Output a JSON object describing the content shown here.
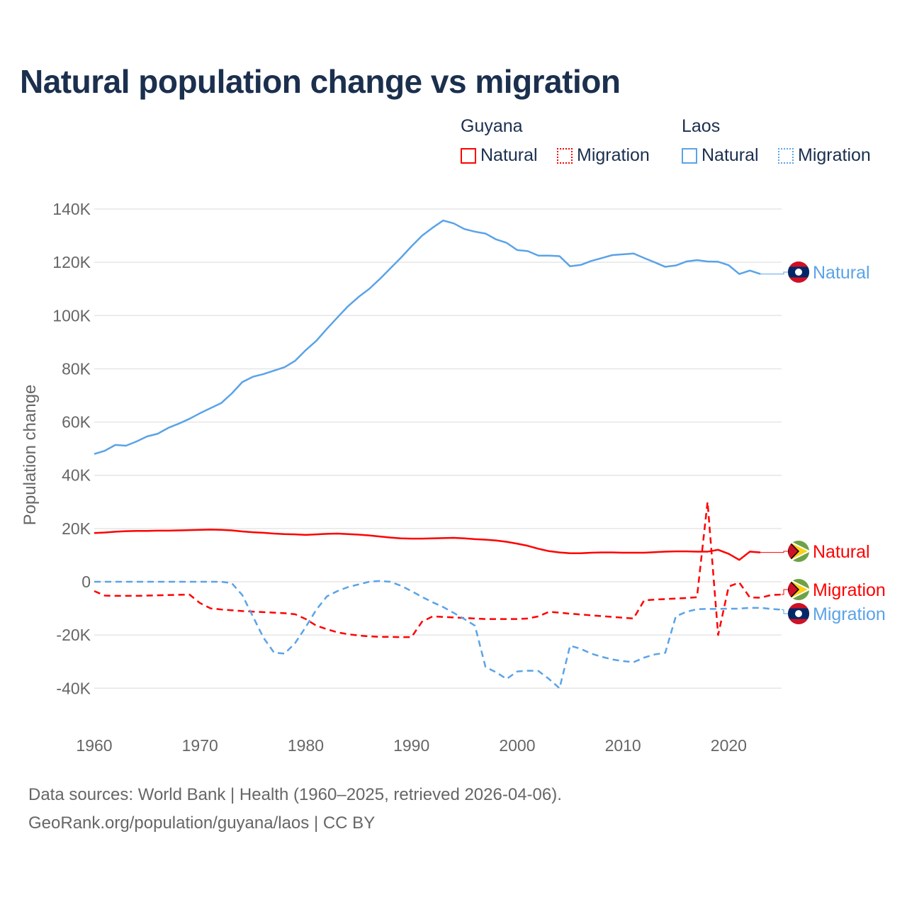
{
  "chart_data": {
    "type": "line",
    "title": "Natural population change vs migration",
    "xlabel": "",
    "ylabel": "Population change",
    "xlim": [
      1960,
      2025
    ],
    "ylim": [
      -50000,
      140000
    ],
    "y_ticks": [
      -40000,
      -20000,
      0,
      20000,
      40000,
      60000,
      80000,
      100000,
      120000,
      140000
    ],
    "y_tick_labels": [
      "-40K",
      "-20K",
      "0",
      "20K",
      "40K",
      "60K",
      "80K",
      "100K",
      "120K",
      "140K"
    ],
    "x_ticks": [
      1960,
      1970,
      1980,
      1990,
      2000,
      2010,
      2020
    ],
    "x_tick_labels": [
      "1960",
      "1970",
      "1980",
      "1990",
      "2000",
      "2010",
      "2020"
    ],
    "grid": true,
    "legend": {
      "placement": "top-right",
      "groups": [
        {
          "name": "Guyana",
          "items": [
            "Natural",
            "Migration"
          ]
        },
        {
          "name": "Laos",
          "items": [
            "Natural",
            "Migration"
          ]
        }
      ]
    },
    "series": [
      {
        "name": "Laos Natural",
        "country": "Laos",
        "kind": "Natural",
        "label": "Natural",
        "color": "#5aa3e8",
        "dashed": false,
        "start_year": 1960,
        "values": [
          48000,
          49200,
          51400,
          51100,
          52700,
          54600,
          55600,
          57800,
          59400,
          61200,
          63300,
          65200,
          67100,
          70700,
          75000,
          77000,
          78000,
          79300,
          80600,
          83000,
          87000,
          90500,
          95000,
          99300,
          103500,
          107000,
          110000,
          113700,
          117700,
          121700,
          126000,
          130000,
          133000,
          135700,
          134600,
          132500,
          131500,
          130800,
          128600,
          127300,
          124600,
          124200,
          122500,
          122500,
          122300,
          118500,
          119000,
          120500,
          121600,
          122700,
          123000,
          123300,
          121600,
          120000,
          118300,
          118800,
          120300,
          120800,
          120300,
          120200,
          118900,
          115600,
          116900,
          115600
        ]
      },
      {
        "name": "Guyana Natural",
        "country": "Guyana",
        "kind": "Natural",
        "label": "Natural",
        "color": "#ff0000",
        "dashed": false,
        "start_year": 1960,
        "values": [
          18300,
          18500,
          18800,
          19000,
          19100,
          19100,
          19200,
          19200,
          19300,
          19400,
          19500,
          19600,
          19500,
          19300,
          18900,
          18600,
          18400,
          18100,
          17900,
          17800,
          17600,
          17800,
          18000,
          18100,
          17900,
          17700,
          17400,
          17000,
          16600,
          16300,
          16200,
          16200,
          16300,
          16400,
          16500,
          16300,
          16000,
          15800,
          15500,
          15000,
          14300,
          13500,
          12400,
          11500,
          11000,
          10700,
          10700,
          10900,
          11000,
          11000,
          10900,
          10900,
          10900,
          11100,
          11300,
          11400,
          11400,
          11300,
          11300,
          12000,
          10500,
          8200,
          11300,
          11000
        ]
      },
      {
        "name": "Guyana Migration",
        "country": "Guyana",
        "kind": "Migration",
        "label": "Migration",
        "color": "#ff0000",
        "dashed": true,
        "start_year": 1960,
        "values": [
          -3500,
          -5200,
          -5300,
          -5300,
          -5300,
          -5200,
          -5100,
          -5000,
          -4900,
          -4800,
          -8000,
          -10000,
          -10400,
          -10700,
          -11000,
          -11200,
          -11400,
          -11600,
          -11800,
          -12200,
          -14000,
          -16500,
          -17800,
          -19000,
          -19700,
          -20200,
          -20500,
          -20700,
          -20700,
          -20800,
          -20800,
          -15000,
          -13000,
          -13200,
          -13400,
          -13600,
          -13800,
          -14000,
          -14000,
          -14000,
          -14000,
          -13800,
          -13000,
          -11300,
          -11600,
          -12000,
          -12300,
          -12600,
          -12900,
          -13200,
          -13500,
          -13800,
          -7000,
          -6700,
          -6500,
          -6300,
          -6100,
          -5800,
          30000,
          -20000,
          -1800,
          -300,
          -5900,
          -6000,
          -5000,
          -4800
        ]
      },
      {
        "name": "Laos Migration",
        "country": "Laos",
        "kind": "Migration",
        "label": "Migration",
        "color": "#5aa3e8",
        "dashed": true,
        "start_year": 1960,
        "values": [
          0,
          0,
          0,
          0,
          0,
          0,
          0,
          0,
          0,
          0,
          0,
          0,
          0,
          -500,
          -5000,
          -13000,
          -21000,
          -26600,
          -27000,
          -23000,
          -17000,
          -10500,
          -5500,
          -3500,
          -2000,
          -1000,
          0,
          300,
          0,
          -1500,
          -3500,
          -5700,
          -7700,
          -9500,
          -11700,
          -14000,
          -16500,
          -32000,
          -34000,
          -36500,
          -33700,
          -33400,
          -33500,
          -36500,
          -40000,
          -24000,
          -25200,
          -27000,
          -28200,
          -29200,
          -29800,
          -30200,
          -28500,
          -27300,
          -26700,
          -13000,
          -11300,
          -10300,
          -10200,
          -10200,
          -10100,
          -10100,
          -9800,
          -9800,
          -10200,
          -10500
        ]
      }
    ]
  },
  "sources": {
    "line1": "Data sources: World Bank | Health (1960–2025, retrieved 2026-04-06).",
    "line2": "GeoRank.org/population/guyana/laos | CC BY"
  },
  "colors": {
    "title": "#1b2f4e",
    "guyana": "#ff0000",
    "laos": "#5aa3e8",
    "grid": "#e6e6e6",
    "axis_text": "#666666"
  }
}
